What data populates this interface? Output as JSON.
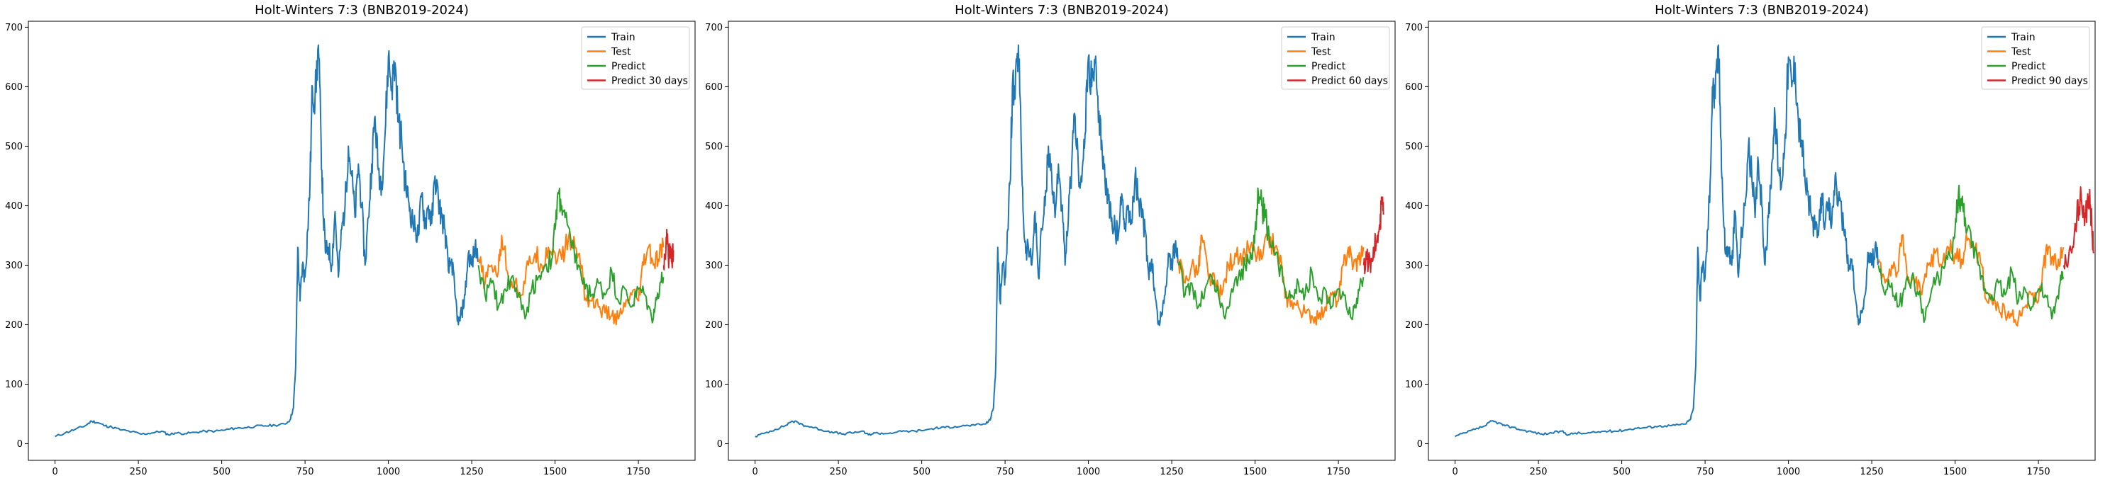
{
  "chart_data": [
    {
      "type": "line",
      "title": "Holt-Winters 7:3 (BNB2019-2024)",
      "xlabel": "",
      "ylabel": "",
      "xlim": [
        -80,
        1920
      ],
      "ylim": [
        -28,
        710
      ],
      "xticks": [
        0,
        250,
        500,
        750,
        1000,
        1250,
        1500,
        1750
      ],
      "yticks": [
        0,
        100,
        200,
        300,
        400,
        500,
        600,
        700
      ],
      "grid": false,
      "legend_position": "top-right",
      "series": [
        {
          "name": "Train",
          "color": "#1f77b4",
          "x": [
            0,
            30,
            60,
            90,
            110,
            130,
            150,
            170,
            200,
            230,
            260,
            290,
            320,
            340,
            360,
            390,
            420,
            450,
            480,
            510,
            540,
            570,
            600,
            630,
            660,
            690,
            705,
            715,
            722,
            728,
            735,
            742,
            750,
            758,
            765,
            772,
            780,
            790,
            798,
            805,
            812,
            820,
            830,
            840,
            850,
            860,
            870,
            880,
            890,
            900,
            910,
            920,
            930,
            940,
            950,
            960,
            970,
            980,
            990,
            1000,
            1010,
            1020,
            1030,
            1040,
            1050,
            1060,
            1070,
            1080,
            1090,
            1100,
            1110,
            1120,
            1130,
            1140,
            1150,
            1160,
            1170,
            1180,
            1190,
            1200,
            1210,
            1220,
            1230,
            1240,
            1250,
            1260,
            1270
          ],
          "y": [
            12,
            18,
            24,
            30,
            38,
            35,
            30,
            28,
            23,
            20,
            16,
            18,
            21,
            15,
            18,
            17,
            19,
            21,
            21,
            23,
            26,
            27,
            29,
            30,
            31,
            33,
            40,
            60,
            130,
            330,
            240,
            300,
            280,
            360,
            440,
            600,
            580,
            670,
            510,
            380,
            320,
            330,
            300,
            390,
            280,
            360,
            400,
            500,
            450,
            380,
            470,
            400,
            300,
            380,
            470,
            550,
            460,
            440,
            520,
            650,
            600,
            640,
            540,
            510,
            440,
            410,
            380,
            360,
            350,
            420,
            370,
            400,
            370,
            450,
            410,
            380,
            360,
            290,
            310,
            250,
            200,
            220,
            250,
            320,
            300,
            330,
            310
          ]
        },
        {
          "name": "Test",
          "color": "#ff7f0e",
          "x": [
            1270,
            1290,
            1310,
            1330,
            1340,
            1360,
            1380,
            1400,
            1420,
            1440,
            1460,
            1480,
            1500,
            1520,
            1540,
            1560,
            1580,
            1590,
            1610,
            1630,
            1650,
            1670,
            1690,
            1710,
            1730,
            1750,
            1765,
            1780,
            1795,
            1810,
            1825
          ],
          "y": [
            310,
            270,
            300,
            290,
            350,
            280,
            270,
            250,
            300,
            320,
            300,
            330,
            320,
            310,
            345,
            330,
            300,
            245,
            240,
            230,
            220,
            215,
            210,
            230,
            250,
            240,
            300,
            330,
            300,
            310,
            330
          ]
        },
        {
          "name": "Predict",
          "color": "#2ca02c",
          "x": [
            1270,
            1290,
            1310,
            1330,
            1350,
            1370,
            1390,
            1410,
            1430,
            1450,
            1470,
            1490,
            1500,
            1510,
            1520,
            1530,
            1550,
            1570,
            1590,
            1610,
            1630,
            1650,
            1670,
            1690,
            1710,
            1730,
            1750,
            1770,
            1790,
            1800,
            1815,
            1825
          ],
          "y": [
            300,
            250,
            270,
            230,
            260,
            280,
            250,
            210,
            260,
            280,
            300,
            310,
            360,
            420,
            400,
            380,
            330,
            300,
            260,
            250,
            270,
            250,
            290,
            240,
            260,
            230,
            260,
            250,
            210,
            230,
            270,
            280
          ]
        },
        {
          "name": "Predict 30 days",
          "color": "#d62728",
          "x": [
            1826,
            1830,
            1835,
            1840,
            1845,
            1850,
            1855
          ],
          "y": [
            300,
            315,
            360,
            310,
            320,
            305,
            325
          ]
        }
      ]
    },
    {
      "type": "line",
      "title": "Holt-Winters 7:3 (BNB2019-2024)",
      "xlabel": "",
      "ylabel": "",
      "xlim": [
        -80,
        1920
      ],
      "ylim": [
        -28,
        710
      ],
      "xticks": [
        0,
        250,
        500,
        750,
        1000,
        1250,
        1500,
        1750
      ],
      "yticks": [
        0,
        100,
        200,
        300,
        400,
        500,
        600,
        700
      ],
      "grid": false,
      "legend_position": "top-right",
      "series": [
        {
          "name": "Train",
          "color": "#1f77b4",
          "x": [
            0,
            30,
            60,
            90,
            110,
            130,
            150,
            170,
            200,
            230,
            260,
            290,
            320,
            340,
            360,
            390,
            420,
            450,
            480,
            510,
            540,
            570,
            600,
            630,
            660,
            690,
            705,
            715,
            722,
            728,
            735,
            742,
            750,
            758,
            765,
            772,
            780,
            790,
            798,
            805,
            812,
            820,
            830,
            840,
            850,
            860,
            870,
            880,
            890,
            900,
            910,
            920,
            930,
            940,
            950,
            960,
            970,
            980,
            990,
            1000,
            1010,
            1020,
            1030,
            1040,
            1050,
            1060,
            1070,
            1080,
            1090,
            1100,
            1110,
            1120,
            1130,
            1140,
            1150,
            1160,
            1170,
            1180,
            1190,
            1200,
            1210,
            1220,
            1230,
            1240,
            1250,
            1260,
            1270
          ],
          "y": [
            12,
            18,
            24,
            30,
            38,
            35,
            30,
            28,
            23,
            20,
            16,
            18,
            21,
            15,
            18,
            17,
            19,
            21,
            21,
            23,
            26,
            27,
            29,
            30,
            31,
            33,
            40,
            60,
            130,
            330,
            240,
            300,
            280,
            360,
            440,
            600,
            580,
            670,
            510,
            380,
            320,
            330,
            300,
            390,
            280,
            360,
            400,
            500,
            450,
            380,
            470,
            400,
            300,
            380,
            470,
            550,
            460,
            440,
            520,
            650,
            600,
            640,
            540,
            510,
            440,
            410,
            380,
            360,
            350,
            420,
            370,
            400,
            370,
            450,
            410,
            380,
            360,
            290,
            310,
            250,
            200,
            220,
            250,
            320,
            300,
            330,
            310
          ]
        },
        {
          "name": "Test",
          "color": "#ff7f0e",
          "x": [
            1270,
            1290,
            1310,
            1330,
            1340,
            1360,
            1380,
            1400,
            1420,
            1440,
            1460,
            1480,
            1500,
            1520,
            1540,
            1560,
            1580,
            1590,
            1610,
            1630,
            1650,
            1670,
            1690,
            1710,
            1730,
            1750,
            1765,
            1780,
            1795,
            1810,
            1825
          ],
          "y": [
            310,
            270,
            300,
            290,
            350,
            280,
            270,
            250,
            300,
            320,
            300,
            330,
            320,
            310,
            345,
            330,
            300,
            245,
            240,
            230,
            220,
            215,
            210,
            230,
            250,
            240,
            300,
            330,
            300,
            310,
            330
          ]
        },
        {
          "name": "Predict",
          "color": "#2ca02c",
          "x": [
            1270,
            1290,
            1310,
            1330,
            1350,
            1370,
            1390,
            1410,
            1430,
            1450,
            1470,
            1490,
            1500,
            1510,
            1520,
            1530,
            1550,
            1570,
            1590,
            1610,
            1630,
            1650,
            1670,
            1690,
            1710,
            1730,
            1750,
            1770,
            1790,
            1800,
            1815,
            1825
          ],
          "y": [
            300,
            250,
            270,
            230,
            260,
            280,
            250,
            210,
            260,
            280,
            300,
            310,
            360,
            420,
            400,
            380,
            330,
            300,
            260,
            250,
            270,
            250,
            290,
            240,
            260,
            230,
            260,
            250,
            210,
            230,
            270,
            280
          ]
        },
        {
          "name": "Predict 60 days",
          "color": "#d62728",
          "x": [
            1826,
            1835,
            1845,
            1855,
            1865,
            1875,
            1880,
            1885
          ],
          "y": [
            300,
            310,
            300,
            330,
            340,
            360,
            410,
            385
          ]
        }
      ]
    },
    {
      "type": "line",
      "title": "Holt-Winters 7:3 (BNB2019-2024)",
      "xlabel": "",
      "ylabel": "",
      "xlim": [
        -80,
        1920
      ],
      "ylim": [
        -28,
        710
      ],
      "xticks": [
        0,
        250,
        500,
        750,
        1000,
        1250,
        1500,
        1750,
        2000
      ],
      "yticks": [
        0,
        100,
        200,
        300,
        400,
        500,
        600,
        700
      ],
      "grid": false,
      "legend_position": "top-right",
      "series": [
        {
          "name": "Train",
          "color": "#1f77b4",
          "x": [
            0,
            30,
            60,
            90,
            110,
            130,
            150,
            170,
            200,
            230,
            260,
            290,
            320,
            340,
            360,
            390,
            420,
            450,
            480,
            510,
            540,
            570,
            600,
            630,
            660,
            690,
            705,
            715,
            722,
            728,
            735,
            742,
            750,
            758,
            765,
            772,
            780,
            790,
            798,
            805,
            812,
            820,
            830,
            840,
            850,
            860,
            870,
            880,
            890,
            900,
            910,
            920,
            930,
            940,
            950,
            960,
            970,
            980,
            990,
            1000,
            1010,
            1020,
            1030,
            1040,
            1050,
            1060,
            1070,
            1080,
            1090,
            1100,
            1110,
            1120,
            1130,
            1140,
            1150,
            1160,
            1170,
            1180,
            1190,
            1200,
            1210,
            1220,
            1230,
            1240,
            1250,
            1260,
            1270
          ],
          "y": [
            12,
            18,
            24,
            30,
            38,
            35,
            30,
            28,
            23,
            20,
            16,
            18,
            21,
            15,
            18,
            17,
            19,
            21,
            21,
            23,
            26,
            27,
            29,
            30,
            31,
            33,
            40,
            60,
            130,
            330,
            240,
            300,
            280,
            360,
            440,
            600,
            580,
            670,
            510,
            380,
            320,
            330,
            300,
            390,
            280,
            360,
            400,
            500,
            450,
            380,
            470,
            400,
            300,
            380,
            470,
            550,
            460,
            440,
            520,
            650,
            600,
            640,
            540,
            510,
            440,
            410,
            380,
            360,
            350,
            420,
            370,
            400,
            370,
            450,
            410,
            380,
            360,
            290,
            310,
            250,
            200,
            220,
            250,
            320,
            300,
            330,
            310
          ]
        },
        {
          "name": "Test",
          "color": "#ff7f0e",
          "x": [
            1270,
            1290,
            1310,
            1330,
            1340,
            1360,
            1380,
            1400,
            1420,
            1440,
            1460,
            1480,
            1500,
            1520,
            1540,
            1560,
            1580,
            1590,
            1610,
            1630,
            1650,
            1670,
            1690,
            1710,
            1730,
            1750,
            1765,
            1780,
            1795,
            1810,
            1825
          ],
          "y": [
            310,
            270,
            300,
            290,
            350,
            280,
            270,
            250,
            300,
            320,
            300,
            330,
            320,
            310,
            345,
            330,
            300,
            245,
            240,
            230,
            220,
            215,
            210,
            230,
            250,
            240,
            300,
            330,
            300,
            310,
            330
          ]
        },
        {
          "name": "Predict",
          "color": "#2ca02c",
          "x": [
            1270,
            1290,
            1310,
            1330,
            1350,
            1370,
            1390,
            1410,
            1430,
            1450,
            1470,
            1490,
            1500,
            1510,
            1520,
            1530,
            1550,
            1570,
            1590,
            1610,
            1630,
            1650,
            1670,
            1690,
            1710,
            1730,
            1750,
            1770,
            1790,
            1800,
            1815,
            1825
          ],
          "y": [
            300,
            250,
            270,
            230,
            260,
            280,
            250,
            210,
            260,
            280,
            300,
            310,
            360,
            420,
            400,
            380,
            330,
            300,
            260,
            250,
            270,
            250,
            290,
            240,
            260,
            230,
            260,
            250,
            210,
            230,
            270,
            280
          ]
        },
        {
          "name": "Predict 90 days",
          "color": "#d62728",
          "x": [
            1826,
            1840,
            1855,
            1865,
            1875,
            1885,
            1892,
            1898,
            1905,
            1910,
            1915
          ],
          "y": [
            300,
            310,
            330,
            380,
            410,
            400,
            380,
            420,
            400,
            370,
            320
          ]
        }
      ]
    }
  ]
}
